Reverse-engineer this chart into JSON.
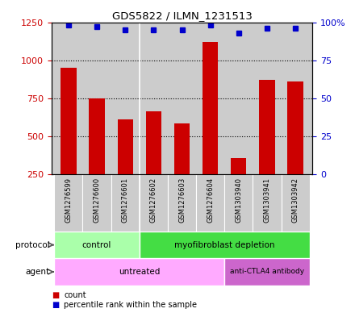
{
  "title": "GDS5822 / ILMN_1231513",
  "samples": [
    "GSM1276599",
    "GSM1276600",
    "GSM1276601",
    "GSM1276602",
    "GSM1276603",
    "GSM1276604",
    "GSM1303940",
    "GSM1303941",
    "GSM1303942"
  ],
  "counts": [
    950,
    750,
    610,
    665,
    585,
    1120,
    355,
    870,
    860
  ],
  "percentile_ranks": [
    98,
    97,
    95,
    95,
    95,
    98,
    93,
    96,
    96
  ],
  "ylim_left": [
    250,
    1250
  ],
  "ylim_right": [
    0,
    100
  ],
  "yticks_left": [
    250,
    500,
    750,
    1000,
    1250
  ],
  "yticks_right": [
    0,
    25,
    50,
    75,
    100
  ],
  "bar_color": "#cc0000",
  "dot_color": "#0000cc",
  "grid_color": "#000000",
  "plot_bg_color": "#cccccc",
  "sample_box_bg": "#cccccc",
  "protocol_labels": [
    [
      "control",
      0,
      2
    ],
    [
      "myofibroblast depletion",
      3,
      8
    ]
  ],
  "protocol_colors": [
    "#aaffaa",
    "#44dd44"
  ],
  "agent_labels": [
    [
      "untreated",
      0,
      5
    ],
    [
      "anti-CTLA4 antibody",
      6,
      8
    ]
  ],
  "agent_colors": [
    "#ffaaff",
    "#cc66cc"
  ],
  "legend_count_label": "count",
  "legend_pct_label": "percentile rank within the sample",
  "left_tick_color": "#cc0000",
  "right_tick_color": "#0000cc",
  "protocol_arrow_label": "protocol",
  "agent_arrow_label": "agent"
}
